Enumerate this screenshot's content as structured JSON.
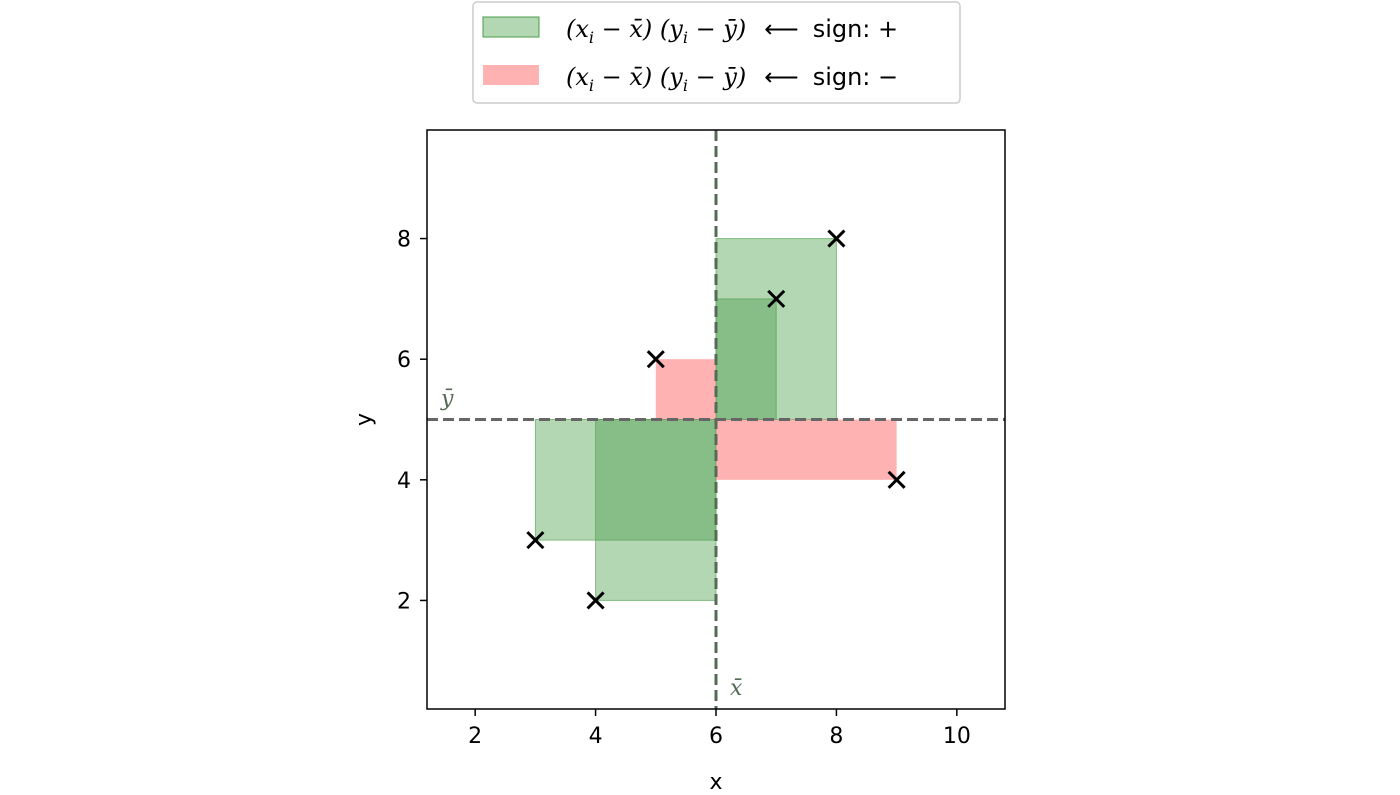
{
  "chart_data": {
    "type": "scatter",
    "title": "",
    "xlabel": "x",
    "ylabel": "y",
    "xlim": [
      1.2,
      10.8
    ],
    "ylim": [
      0.2,
      9.8
    ],
    "xticks": [
      2,
      4,
      6,
      8,
      10
    ],
    "yticks": [
      2,
      4,
      6,
      8
    ],
    "x_mean": 6,
    "y_mean": 5,
    "x_mean_label": "x̄",
    "y_mean_label": "ȳ",
    "grid": false,
    "legend_position": "top-center-outside",
    "points": [
      {
        "x": 3,
        "y": 3
      },
      {
        "x": 4,
        "y": 2
      },
      {
        "x": 5,
        "y": 6
      },
      {
        "x": 7,
        "y": 7
      },
      {
        "x": 8,
        "y": 8
      },
      {
        "x": 9,
        "y": 4
      }
    ],
    "series": [
      {
        "name": "(xi − x̄) (yi − ȳ)  ⟵  sign: +",
        "sign": "+",
        "color": "#4a9e4a",
        "points": [
          {
            "x": 3,
            "y": 3
          },
          {
            "x": 4,
            "y": 2
          },
          {
            "x": 7,
            "y": 7
          },
          {
            "x": 8,
            "y": 8
          }
        ]
      },
      {
        "name": "(xi − x̄) (yi − ȳ)  ⟵  sign: −",
        "sign": "−",
        "color": "#ff7f7f",
        "points": [
          {
            "x": 5,
            "y": 6
          },
          {
            "x": 9,
            "y": 4
          }
        ]
      }
    ],
    "legend": [
      {
        "math_a": "(x",
        "sub_a": "i",
        "mid_a": " − x̄) (y",
        "sub_b": "i",
        "mid_b": " − ȳ)",
        "arrow": "⟵",
        "sign_label": "sign: +"
      },
      {
        "math_a": "(x",
        "sub_a": "i",
        "mid_a": " − x̄) (y",
        "sub_b": "i",
        "mid_b": " − ȳ)",
        "arrow": "⟵",
        "sign_label": "sign: −"
      }
    ],
    "colors": {
      "positive_fill": "#4a9e4a",
      "negative_fill": "#ff7f7f",
      "mean_line": "#556b55",
      "marker": "#000000"
    }
  }
}
